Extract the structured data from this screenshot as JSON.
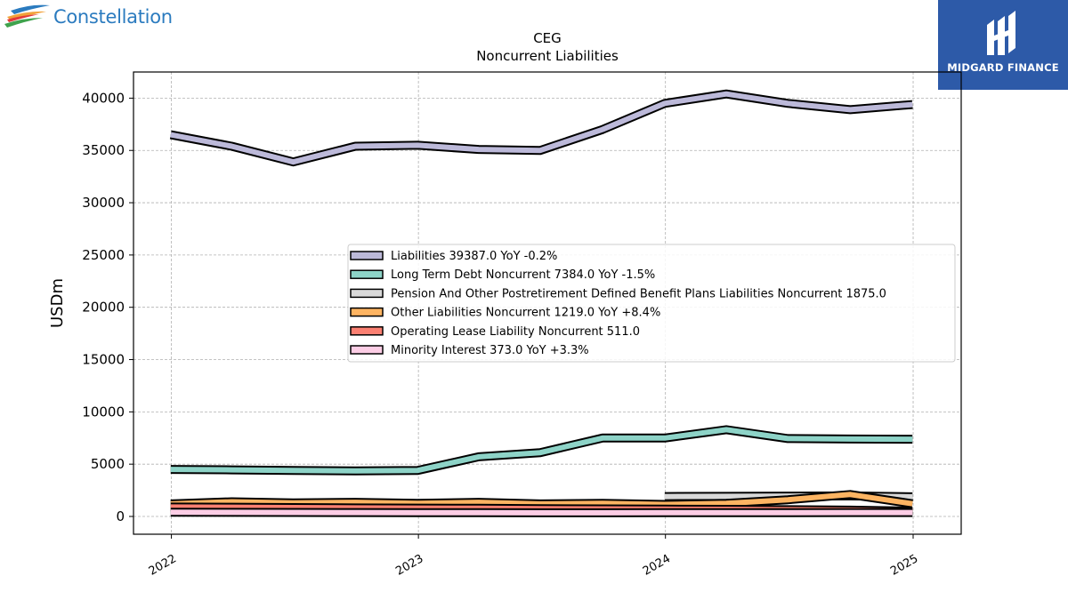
{
  "logos": {
    "left_brand": "Constellation",
    "right_brand": "MIDGARD FINANCE"
  },
  "colors": {
    "Liabilities": "#bcb9d9",
    "Long Term Debt Noncurrent": "#8dd3c7",
    "Pension And Other Postretirement Defined Benefit Plans Liabilities Noncurrent": "#d9d9d9",
    "Other Liabilities Noncurrent": "#fdb462",
    "Operating Lease Liability Noncurrent": "#fb8072",
    "Minority Interest": "#fccde5",
    "brand_blue": "#2b7bbf",
    "panel_blue": "#2d5aa8"
  },
  "chart_data": {
    "type": "line",
    "title": "CEG",
    "subtitle": "Noncurrent  Liabilities",
    "ylabel": "USDm",
    "xlabel": "",
    "ylim": [
      -1700,
      42500
    ],
    "xlim": [
      "2021-11-06",
      "2025-03-13"
    ],
    "yticks": [
      0,
      5000,
      10000,
      15000,
      20000,
      25000,
      30000,
      35000,
      40000
    ],
    "xticks": [
      "2022",
      "2023",
      "2024",
      "2025"
    ],
    "grid": true,
    "legend_position": "center-right",
    "series": [
      {
        "name": "Liabilities",
        "legend": "Liabilities  39387.0 YoY -0.2%",
        "x": [
          "2021-12-31",
          "2022-03-31",
          "2022-06-30",
          "2022-09-30",
          "2022-12-31",
          "2023-03-31",
          "2023-06-30",
          "2023-09-30",
          "2023-12-31",
          "2024-03-31",
          "2024-06-30",
          "2024-09-30",
          "2024-12-31"
        ],
        "values": [
          36500,
          35400,
          33900,
          35400,
          35500,
          35100,
          35000,
          37000,
          39500,
          40400,
          39500,
          38900,
          39387
        ]
      },
      {
        "name": "Long Term Debt Noncurrent",
        "legend": "Long Term Debt Noncurrent  7384.0 YoY -1.5%",
        "x": [
          "2021-12-31",
          "2022-03-31",
          "2022-06-30",
          "2022-09-30",
          "2022-12-31",
          "2023-03-31",
          "2023-06-30",
          "2023-09-30",
          "2023-12-31",
          "2024-03-31",
          "2024-06-30",
          "2024-09-30",
          "2024-12-31"
        ],
        "values": [
          4500,
          4450,
          4400,
          4350,
          4400,
          5700,
          6100,
          7500,
          7500,
          8300,
          7450,
          7400,
          7384
        ]
      },
      {
        "name": "Pension And Other Postretirement Defined Benefit Plans Liabilities Noncurrent",
        "legend": "Pension And Other Postretirement Defined Benefit Plans Liabilities Noncurrent  1875.0",
        "x": [
          "2023-12-31",
          "2024-03-31",
          "2024-06-30",
          "2024-09-30",
          "2024-12-31"
        ],
        "values": [
          1900,
          1920,
          1950,
          1960,
          1875
        ]
      },
      {
        "name": "Other Liabilities Noncurrent",
        "legend": "Other Liabilities Noncurrent  1219.0 YoY +8.4%",
        "x": [
          "2021-12-31",
          "2022-03-31",
          "2022-06-30",
          "2022-09-30",
          "2022-12-31",
          "2023-03-31",
          "2023-06-30",
          "2023-09-30",
          "2023-12-31",
          "2024-03-31",
          "2024-06-30",
          "2024-09-30",
          "2024-12-31"
        ],
        "values": [
          1200,
          1400,
          1300,
          1350,
          1250,
          1350,
          1200,
          1250,
          1150,
          1250,
          1600,
          2100,
          1219
        ]
      },
      {
        "name": "Operating Lease Liability Noncurrent",
        "legend": "Operating Lease Liability Noncurrent  511.0",
        "x": [
          "2021-12-31",
          "2022-03-31",
          "2022-06-30",
          "2022-09-30",
          "2022-12-31",
          "2023-03-31",
          "2023-06-30",
          "2023-09-30",
          "2023-12-31",
          "2024-03-31",
          "2024-06-30",
          "2024-09-30",
          "2024-12-31"
        ],
        "values": [
          900,
          880,
          850,
          820,
          800,
          780,
          750,
          720,
          700,
          680,
          650,
          600,
          511
        ]
      },
      {
        "name": "Minority Interest",
        "legend": "Minority Interest  373.0 YoY +3.3%",
        "x": [
          "2021-12-31",
          "2022-03-31",
          "2022-06-30",
          "2022-09-30",
          "2022-12-31",
          "2023-03-31",
          "2023-06-30",
          "2023-09-30",
          "2023-12-31",
          "2024-03-31",
          "2024-06-30",
          "2024-09-30",
          "2024-12-31"
        ],
        "values": [
          400,
          390,
          380,
          370,
          360,
          360,
          350,
          350,
          361,
          365,
          368,
          370,
          373
        ]
      }
    ]
  }
}
